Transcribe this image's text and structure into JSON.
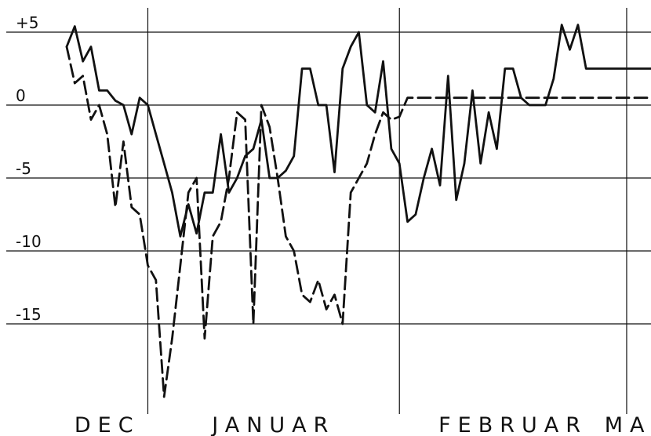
{
  "chart_data": {
    "type": "line",
    "title": "",
    "xlabel": "",
    "ylabel": "",
    "ylim": [
      -20.5,
      6.5
    ],
    "yticks": [
      {
        "value": 5,
        "label": "+5"
      },
      {
        "value": 0,
        "label": "0"
      },
      {
        "value": -5,
        "label": "-5"
      },
      {
        "value": -10,
        "label": "-10"
      },
      {
        "value": -15,
        "label": "-15"
      }
    ],
    "month_labels": [
      {
        "label": "DEC",
        "start": 0,
        "end": 10
      },
      {
        "label": "JANUAR",
        "start": 10,
        "end": 41
      },
      {
        "label": "FEBRUAR",
        "start": 41,
        "end": 69
      },
      {
        "label": "MAR",
        "start": 69,
        "end": 72
      }
    ],
    "xlim": [
      0,
      72
    ],
    "month_boundaries": [
      10,
      41,
      69
    ],
    "grid": true,
    "series": [
      {
        "style": "solid",
        "x": [
          0,
          1,
          2,
          3,
          4,
          5,
          6,
          7,
          8,
          9,
          10,
          11,
          12,
          13,
          14,
          15,
          16,
          17,
          18,
          19,
          20,
          21,
          22,
          23,
          24,
          25,
          26,
          27,
          28,
          29,
          30,
          31,
          32,
          33,
          34,
          35,
          36,
          37,
          38,
          39,
          40,
          41,
          42,
          43,
          44,
          45,
          46,
          47,
          48,
          49,
          50,
          51,
          52,
          53,
          54,
          55,
          56,
          57,
          58,
          59,
          60,
          61,
          62,
          63,
          64,
          65,
          66,
          67,
          68,
          69,
          70,
          71,
          72
        ],
        "values": [
          4,
          5.4,
          3,
          4,
          1,
          1,
          0.3,
          0,
          -2,
          0.5,
          0,
          -2,
          -4,
          -6,
          -9,
          -6.8,
          -8.8,
          -6,
          -6,
          -2,
          -6,
          -5,
          -3.5,
          -3,
          -1,
          -5,
          -5,
          -4.5,
          -3.5,
          2.5,
          2.5,
          0,
          0,
          -4.6,
          2.5,
          4,
          5,
          0,
          -0.5,
          3,
          -3,
          -4,
          -8,
          -7.5,
          -5,
          -3,
          -5.5,
          2,
          -6.5,
          -4,
          1,
          -4,
          -0.5,
          -3,
          2.5,
          2.5,
          0.5,
          0,
          0,
          0,
          1.8,
          5.5,
          3.8,
          5.5,
          2.5,
          2.5,
          2.5,
          2.5,
          2.5,
          2.5,
          2.5,
          2.5,
          2.5
        ]
      },
      {
        "style": "dashed",
        "x": [
          0,
          1,
          2,
          3,
          4,
          5,
          6,
          7,
          8,
          9,
          10,
          11,
          12,
          13,
          14,
          15,
          16,
          17,
          18,
          19,
          20,
          21,
          22,
          23,
          24,
          25,
          26,
          27,
          28,
          29,
          30,
          31,
          32,
          33,
          34,
          35,
          36,
          37,
          38,
          39,
          40,
          41,
          42,
          43,
          44,
          45,
          46,
          47,
          48,
          49,
          50,
          51,
          52,
          53,
          54,
          55,
          56,
          57,
          58,
          59,
          60,
          61,
          62,
          63,
          64,
          65,
          66,
          67,
          68,
          69,
          70,
          71,
          72
        ],
        "values": [
          4,
          1.5,
          2,
          -1,
          0,
          -2,
          -7,
          -2.5,
          -7,
          -7.5,
          -11,
          -12,
          -20,
          -16,
          -11,
          -6,
          -5,
          -16,
          -9,
          -8,
          -5,
          -0.5,
          -1,
          -15,
          0,
          -1.5,
          -5,
          -9,
          -10,
          -13,
          -13.5,
          -12,
          -14,
          -13,
          -15,
          -6,
          -5,
          -4,
          -2,
          -0.5,
          -1,
          -0.8,
          0.5,
          0.5,
          0.5,
          0.5,
          0.5,
          0.5,
          0.5,
          0.5,
          0.5,
          0.5,
          0.5,
          0.5,
          0.5,
          0.5,
          0.5,
          0.5,
          0.5,
          0.5,
          0.5,
          0.5,
          0.5,
          0.5,
          0.5,
          0.5,
          0.5,
          0.5,
          0.5,
          0.5,
          0.5,
          0.5,
          0.5
        ]
      }
    ]
  }
}
